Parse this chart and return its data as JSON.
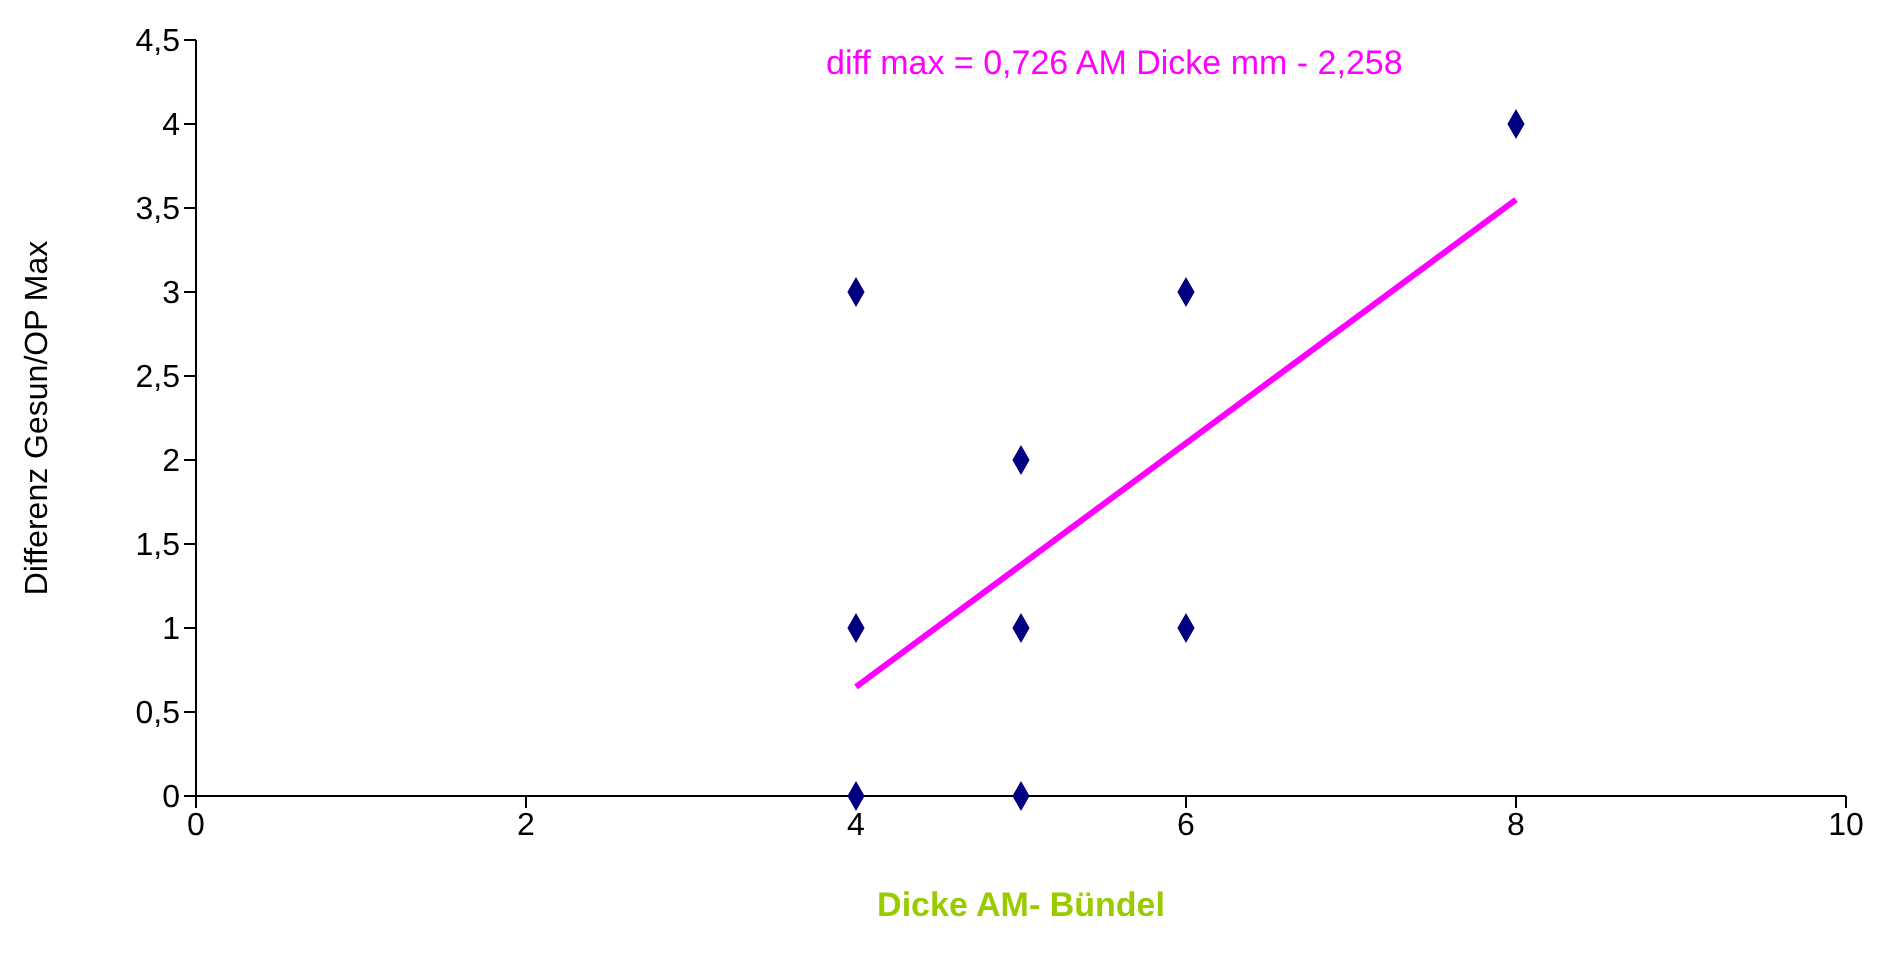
{
  "chart_data": {
    "type": "scatter",
    "xlabel": "Dicke AM- Bündel",
    "ylabel": "Differenz Gesun/OP Max",
    "annotations": [
      "diff max = 0,726 AM Dicke mm - 2,258"
    ],
    "series": [
      {
        "color": "#000080",
        "x": [
          4,
          4,
          4,
          5,
          5,
          5,
          6,
          6,
          8
        ],
        "values": [
          3,
          1,
          0,
          2,
          1,
          0,
          3,
          1,
          4
        ]
      },
      {
        "type": "line",
        "color": "#ff00ff",
        "marker": "none",
        "x": [
          4,
          8
        ],
        "values": [
          0.65,
          3.55
        ]
      }
    ],
    "marker": "diamond",
    "grid": false,
    "legend": false,
    "xlim": [
      0,
      10
    ],
    "xticks": [
      0,
      2,
      4,
      6,
      8,
      10
    ],
    "ylim": [
      0,
      4.5
    ],
    "yticks": [
      0,
      {
        "value": 0.5,
        "label": "0,5"
      },
      1,
      {
        "value": 1.5,
        "label": "1,5"
      },
      2,
      {
        "value": 2.5,
        "label": "2,5"
      },
      3,
      {
        "value": 3.5,
        "label": "3,5"
      },
      4,
      {
        "value": 4.5,
        "label": "4,5"
      }
    ]
  }
}
